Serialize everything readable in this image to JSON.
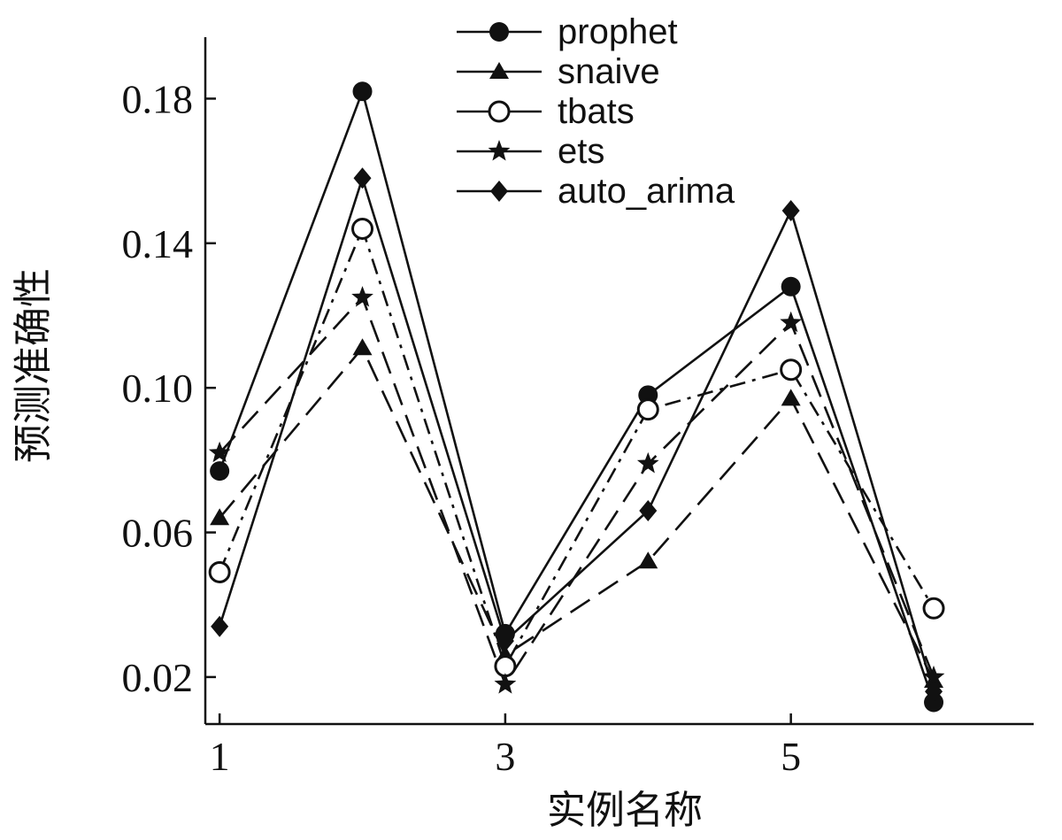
{
  "chart_data": {
    "type": "line",
    "title": "",
    "xlabel": "实例名称",
    "ylabel": "预测准确性",
    "x": [
      1,
      2,
      3,
      4,
      5,
      6
    ],
    "xlim": [
      0.9,
      6.7
    ],
    "ylim": [
      0.007,
      0.197
    ],
    "xticks": [
      1,
      3,
      5
    ],
    "xtick_labels": [
      "1",
      "3",
      "5"
    ],
    "yticks": [
      0.02,
      0.06,
      0.1,
      0.14,
      0.18
    ],
    "ytick_labels": [
      "0.02",
      "0.06",
      "0.10",
      "0.14",
      "0.18"
    ],
    "grid": false,
    "legend_position": "top-center",
    "series": [
      {
        "name": "prophet",
        "marker": "circle-filled",
        "dash": "solid",
        "values": [
          0.077,
          0.182,
          0.032,
          0.098,
          0.128,
          0.013
        ]
      },
      {
        "name": "snaive",
        "marker": "triangle",
        "dash": "long-dash",
        "values": [
          0.064,
          0.111,
          0.026,
          0.052,
          0.097,
          0.019
        ]
      },
      {
        "name": "tbats",
        "marker": "circle-open",
        "dash": "dash-dot",
        "values": [
          0.049,
          0.144,
          0.023,
          0.094,
          0.105,
          0.039
        ]
      },
      {
        "name": "ets",
        "marker": "star",
        "dash": "long-dash",
        "values": [
          0.082,
          0.125,
          0.018,
          0.079,
          0.118,
          0.02
        ]
      },
      {
        "name": "auto_arima",
        "marker": "diamond",
        "dash": "solid",
        "values": [
          0.034,
          0.158,
          0.03,
          0.066,
          0.149,
          0.016
        ]
      }
    ]
  }
}
